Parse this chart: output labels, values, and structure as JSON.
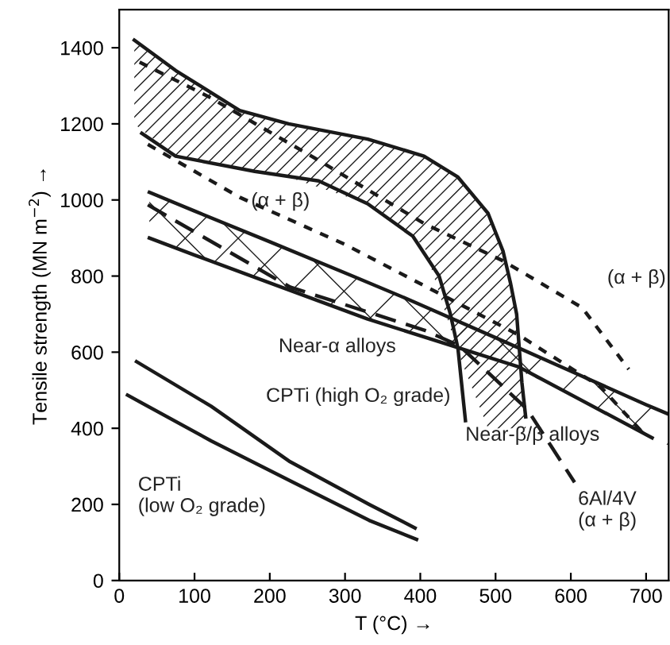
{
  "chart_data": {
    "type": "line",
    "xlabel": "T (°C) →",
    "ylabel": "Tensile strength (MN m$^{−2}$) →",
    "xlim": [
      0,
      730
    ],
    "ylim": [
      0,
      1500
    ],
    "xticks": [
      0,
      100,
      200,
      300,
      400,
      500,
      600,
      700
    ],
    "yticks": [
      0,
      200,
      400,
      600,
      800,
      1000,
      1200,
      1400
    ],
    "grid": false,
    "legend": false,
    "marker": "none",
    "series": [
      {
        "color": "#1a1a1a",
        "line_style": "solid",
        "x": [
          20,
          75,
          160,
          225,
          330,
          405,
          450,
          490,
          510,
          520,
          528,
          535,
          540
        ],
        "values": [
          1420,
          1340,
          1235,
          1200,
          1160,
          1115,
          1060,
          965,
          865,
          780,
          700,
          520,
          430
        ],
        "lower": [
          1200,
          1115,
          1080,
          1060,
          990,
          880,
          600,
          400,
          400,
          400,
          400,
          400,
          400
        ],
        "upper": [
          1420,
          1340,
          1235,
          1200,
          1160,
          1115,
          1060,
          965,
          865,
          780,
          700,
          520,
          430
        ]
      },
      {
        "color": "#1a1a1a",
        "line_style": "solid",
        "x": [
          30,
          75,
          180,
          265,
          330,
          390,
          425,
          440,
          450,
          460
        ],
        "values": [
          1175,
          1115,
          1075,
          1050,
          990,
          905,
          800,
          700,
          610,
          420
        ]
      },
      {
        "color": "#1a1a1a",
        "line_style": "dotted",
        "x": [
          27,
          120,
          265,
          405,
          510,
          615,
          677
        ],
        "values": [
          1362,
          1270,
          1104,
          938,
          840,
          717,
          555
        ]
      },
      {
        "color": "#1a1a1a",
        "line_style": "dotted",
        "x": [
          38,
          160,
          300,
          437,
          530,
          640,
          698
        ],
        "values": [
          1146,
          1007,
          883,
          742,
          646,
          508,
          383
        ]
      },
      {
        "color": "#1a1a1a",
        "line_style": "dashed",
        "x": [
          38,
          227,
          405,
          452,
          542,
          605
        ],
        "values": [
          987,
          771,
          658,
          617,
          450,
          258
        ]
      },
      {
        "color": "#1a1a1a",
        "line_style": "solid",
        "x": [
          40,
          100,
          200,
          310,
          380,
          500,
          600,
          700,
          730
        ],
        "values": [
          1020,
          971,
          890,
          800,
          742,
          638,
          550,
          462,
          437
        ],
        "lower": [
          900,
          855,
          782,
          702,
          655,
          580,
          490,
          385,
          355
        ],
        "upper": [
          1020,
          971,
          890,
          800,
          742,
          638,
          550,
          462,
          437
        ]
      },
      {
        "color": "#1a1a1a",
        "line_style": "solid",
        "x": [
          40,
          100,
          200,
          330,
          530,
          708
        ],
        "values": [
          900,
          855,
          782,
          687,
          562,
          375
        ]
      },
      {
        "color": "#1a1a1a",
        "line_style": "solid",
        "x": [
          23,
          122,
          227,
          332,
          393
        ],
        "values": [
          575,
          458,
          312,
          200,
          138
        ]
      },
      {
        "color": "#1a1a1a",
        "line_style": "solid",
        "x": [
          11,
          122,
          227,
          332,
          395
        ],
        "values": [
          487,
          367,
          262,
          158,
          108
        ]
      }
    ],
    "annotations": [
      "(α + β)",
      "(α + β)",
      "Near-α alloys",
      "Near-β/β alloys",
      "CPTi (high O₂ grade)",
      "CPTi\n(low O₂ grade)",
      "6Al/4V\n(α + β)"
    ]
  }
}
